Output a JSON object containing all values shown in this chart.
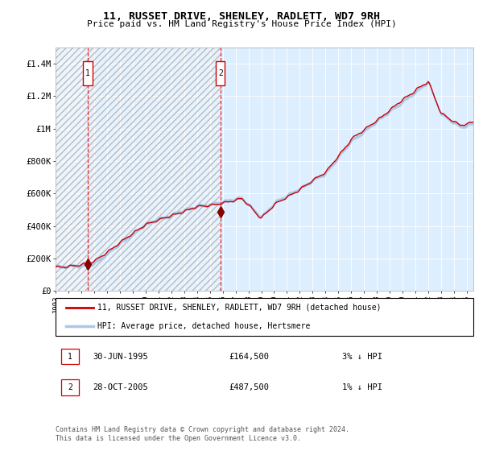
{
  "title": "11, RUSSET DRIVE, SHENLEY, RADLETT, WD7 9RH",
  "subtitle": "Price paid vs. HM Land Registry's House Price Index (HPI)",
  "legend_line1": "11, RUSSET DRIVE, SHENLEY, RADLETT, WD7 9RH (detached house)",
  "legend_line2": "HPI: Average price, detached house, Hertsmere",
  "footnote": "Contains HM Land Registry data © Crown copyright and database right 2024.\nThis data is licensed under the Open Government Licence v3.0.",
  "purchase1_date": "30-JUN-1995",
  "purchase1_price": 164500,
  "purchase1_hpi": "3% ↓ HPI",
  "purchase2_date": "28-OCT-2005",
  "purchase2_price": 487500,
  "purchase2_hpi": "1% ↓ HPI",
  "ylim": [
    0,
    1500000
  ],
  "yticks": [
    0,
    200000,
    400000,
    600000,
    800000,
    1000000,
    1200000,
    1400000
  ],
  "ytick_labels": [
    "£0",
    "£200K",
    "£400K",
    "£600K",
    "£800K",
    "£1M",
    "£1.2M",
    "£1.4M"
  ],
  "hpi_color": "#aac8e8",
  "price_color": "#cc0000",
  "dot_color": "#880000",
  "bg_color": "#ddeeff",
  "purchase1_x": 1995.5,
  "purchase2_x": 2005.83,
  "xmin": 1993.0,
  "xmax": 2025.5
}
